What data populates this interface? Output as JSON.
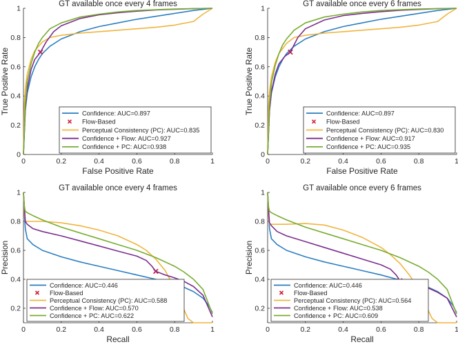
{
  "colors": {
    "confidence": "#2a7ec1",
    "flow": "#d21f3c",
    "pc": "#f0b43c",
    "conf_flow": "#7b2d8e",
    "conf_pc": "#77ac30",
    "axis": "#262626",
    "grid_text": "#262626"
  },
  "chart_data": [
    {
      "type": "line",
      "title": "GT available once every 4 frames",
      "xlabel": "False Positive Rate",
      "ylabel": "True Positive Rate",
      "xlim": [
        0,
        1
      ],
      "ylim": [
        0,
        1
      ],
      "xticks": [
        "0",
        "0.2",
        "0.4",
        "0.6",
        "0.8",
        "1"
      ],
      "yticks": [
        "0",
        "0.2",
        "0.4",
        "0.6",
        "0.8",
        "1"
      ],
      "legend_position": "bottom-right",
      "series": [
        {
          "name": "Confidence: AUC=0.897",
          "color_key": "confidence",
          "x": [
            0,
            0.01,
            0.02,
            0.04,
            0.06,
            0.08,
            0.1,
            0.14,
            0.2,
            0.3,
            0.4,
            0.5,
            0.6,
            0.7,
            0.8,
            0.9,
            1.0
          ],
          "y": [
            0,
            0.3,
            0.42,
            0.53,
            0.6,
            0.65,
            0.69,
            0.74,
            0.79,
            0.84,
            0.875,
            0.9,
            0.925,
            0.945,
            0.965,
            0.985,
            1.0
          ]
        },
        {
          "name": "Flow-Based",
          "color_key": "flow",
          "marker": "x",
          "x": [
            0.09
          ],
          "y": [
            0.7
          ]
        },
        {
          "name": "Perceptual Consistency (PC): AUC=0.835",
          "color_key": "pc",
          "x": [
            0,
            0.005,
            0.01,
            0.02,
            0.04,
            0.06,
            0.1,
            0.14,
            0.2,
            0.3,
            0.4,
            0.5,
            0.6,
            0.7,
            0.8,
            0.9,
            0.95,
            1.0
          ],
          "y": [
            0,
            0.35,
            0.45,
            0.55,
            0.65,
            0.71,
            0.77,
            0.8,
            0.815,
            0.83,
            0.84,
            0.85,
            0.86,
            0.87,
            0.885,
            0.91,
            0.96,
            1.0
          ]
        },
        {
          "name": "Confidence + Flow: AUC=0.927",
          "color_key": "conf_flow",
          "x": [
            0,
            0.01,
            0.02,
            0.04,
            0.06,
            0.09,
            0.12,
            0.16,
            0.2,
            0.3,
            0.4,
            0.5,
            0.6,
            0.7,
            0.8,
            0.9,
            1.0
          ],
          "y": [
            0,
            0.32,
            0.45,
            0.58,
            0.65,
            0.7,
            0.77,
            0.84,
            0.88,
            0.93,
            0.955,
            0.97,
            0.98,
            0.988,
            0.993,
            0.997,
            1.0
          ]
        },
        {
          "name": "Confidence + PC: AUC=0.938",
          "color_key": "conf_pc",
          "x": [
            0,
            0.01,
            0.02,
            0.04,
            0.06,
            0.08,
            0.1,
            0.14,
            0.2,
            0.3,
            0.4,
            0.5,
            0.6,
            0.7,
            0.8,
            0.9,
            1.0
          ],
          "y": [
            0,
            0.35,
            0.5,
            0.62,
            0.7,
            0.76,
            0.8,
            0.86,
            0.9,
            0.94,
            0.96,
            0.975,
            0.985,
            0.99,
            0.995,
            0.998,
            1.0
          ]
        }
      ]
    },
    {
      "type": "line",
      "title": "GT available once every 6 frames",
      "xlabel": "False Positive Rate",
      "ylabel": "True Positive Rate",
      "xlim": [
        0,
        1
      ],
      "ylim": [
        0,
        1
      ],
      "xticks": [
        "0",
        "0.2",
        "0.4",
        "0.6",
        "0.8",
        "1"
      ],
      "yticks": [
        "0",
        "0.2",
        "0.4",
        "0.6",
        "0.8",
        "1"
      ],
      "legend_position": "bottom-right",
      "series": [
        {
          "name": "Confidence: AUC=0.897",
          "color_key": "confidence",
          "x": [
            0,
            0.01,
            0.02,
            0.04,
            0.06,
            0.08,
            0.1,
            0.14,
            0.2,
            0.3,
            0.4,
            0.5,
            0.6,
            0.7,
            0.8,
            0.9,
            1.0
          ],
          "y": [
            0,
            0.3,
            0.42,
            0.53,
            0.6,
            0.65,
            0.69,
            0.74,
            0.79,
            0.84,
            0.875,
            0.9,
            0.925,
            0.945,
            0.965,
            0.985,
            1.0
          ]
        },
        {
          "name": "Flow-Based",
          "color_key": "flow",
          "marker": "x",
          "x": [
            0.12
          ],
          "y": [
            0.7
          ]
        },
        {
          "name": "Perceptual Consistency (PC): AUC=0.830",
          "color_key": "pc",
          "x": [
            0,
            0.005,
            0.01,
            0.02,
            0.04,
            0.06,
            0.1,
            0.14,
            0.2,
            0.3,
            0.4,
            0.5,
            0.6,
            0.7,
            0.8,
            0.9,
            0.95,
            1.0
          ],
          "y": [
            0,
            0.33,
            0.43,
            0.53,
            0.63,
            0.69,
            0.76,
            0.8,
            0.815,
            0.83,
            0.84,
            0.85,
            0.86,
            0.87,
            0.885,
            0.91,
            0.96,
            1.0
          ]
        },
        {
          "name": "Confidence + Flow: AUC=0.917",
          "color_key": "conf_flow",
          "x": [
            0,
            0.01,
            0.02,
            0.04,
            0.06,
            0.09,
            0.12,
            0.16,
            0.2,
            0.3,
            0.4,
            0.5,
            0.6,
            0.7,
            0.8,
            0.9,
            1.0
          ],
          "y": [
            0,
            0.3,
            0.43,
            0.55,
            0.62,
            0.67,
            0.7,
            0.8,
            0.86,
            0.92,
            0.95,
            0.965,
            0.977,
            0.986,
            0.992,
            0.997,
            1.0
          ]
        },
        {
          "name": "Confidence + PC: AUC=0.935",
          "color_key": "conf_pc",
          "x": [
            0,
            0.01,
            0.02,
            0.04,
            0.06,
            0.08,
            0.1,
            0.14,
            0.2,
            0.3,
            0.4,
            0.5,
            0.6,
            0.7,
            0.8,
            0.9,
            1.0
          ],
          "y": [
            0,
            0.34,
            0.49,
            0.61,
            0.69,
            0.75,
            0.79,
            0.85,
            0.9,
            0.94,
            0.96,
            0.975,
            0.985,
            0.99,
            0.995,
            0.998,
            1.0
          ]
        }
      ]
    },
    {
      "type": "line",
      "title": "GT available once every 4 frames",
      "xlabel": "Recall",
      "ylabel": "Precision",
      "xlim": [
        0,
        1
      ],
      "ylim": [
        0.1,
        1
      ],
      "xticks": [
        "0",
        "0.2",
        "0.4",
        "0.6",
        "0.8",
        "1"
      ],
      "yticks": [
        "0.2",
        "0.4",
        "0.6",
        "0.8",
        "1"
      ],
      "legend_position": "bottom-left",
      "series": [
        {
          "name": "Confidence: AUC=0.446",
          "color_key": "confidence",
          "x": [
            0,
            0.005,
            0.01,
            0.02,
            0.05,
            0.1,
            0.2,
            0.3,
            0.4,
            0.5,
            0.6,
            0.7,
            0.8,
            0.85,
            0.9,
            0.95,
            0.98,
            1.0
          ],
          "y": [
            1.0,
            0.85,
            0.75,
            0.68,
            0.64,
            0.6,
            0.555,
            0.52,
            0.49,
            0.46,
            0.43,
            0.4,
            0.365,
            0.345,
            0.315,
            0.27,
            0.22,
            0.17
          ]
        },
        {
          "name": "Flow-Based",
          "color_key": "flow",
          "marker": "x",
          "x": [
            0.7
          ],
          "y": [
            0.455
          ]
        },
        {
          "name": "Perceptual Consistency (PC): AUC=0.588",
          "color_key": "pc",
          "x": [
            0,
            0.005,
            0.01,
            0.05,
            0.1,
            0.2,
            0.3,
            0.4,
            0.5,
            0.6,
            0.65,
            0.7,
            0.75,
            0.8,
            0.83,
            0.87,
            0.9,
            0.97,
            1.0
          ],
          "y": [
            1.0,
            0.85,
            0.8,
            0.8,
            0.8,
            0.79,
            0.77,
            0.74,
            0.7,
            0.64,
            0.6,
            0.54,
            0.46,
            0.34,
            0.25,
            0.13,
            0.1,
            0.1,
            0.1
          ]
        },
        {
          "name": "Confidence + Flow: AUC=0.570",
          "color_key": "conf_flow",
          "x": [
            0,
            0.005,
            0.01,
            0.02,
            0.05,
            0.1,
            0.2,
            0.3,
            0.4,
            0.5,
            0.6,
            0.65,
            0.68,
            0.7,
            0.75,
            0.8,
            0.85,
            0.9,
            0.95,
            1.0
          ],
          "y": [
            1.0,
            0.9,
            0.8,
            0.78,
            0.75,
            0.73,
            0.7,
            0.665,
            0.63,
            0.595,
            0.56,
            0.53,
            0.49,
            0.455,
            0.43,
            0.41,
            0.385,
            0.35,
            0.29,
            0.14
          ]
        },
        {
          "name": "Confidence + PC: AUC=0.622",
          "color_key": "conf_pc",
          "x": [
            0,
            0.005,
            0.01,
            0.02,
            0.05,
            0.1,
            0.2,
            0.3,
            0.4,
            0.5,
            0.6,
            0.7,
            0.8,
            0.85,
            0.9,
            0.95,
            1.0
          ],
          "y": [
            1.0,
            0.9,
            0.87,
            0.86,
            0.84,
            0.81,
            0.76,
            0.72,
            0.68,
            0.64,
            0.6,
            0.55,
            0.49,
            0.45,
            0.4,
            0.33,
            0.16
          ]
        }
      ]
    },
    {
      "type": "line",
      "title": "GT available once every 6 frames",
      "xlabel": "Recall",
      "ylabel": "Precision",
      "xlim": [
        0,
        1
      ],
      "ylim": [
        0.1,
        1
      ],
      "xticks": [
        "0",
        "0.2",
        "0.4",
        "0.6",
        "0.8",
        "1"
      ],
      "yticks": [
        "0.2",
        "0.4",
        "0.6",
        "0.8",
        "1"
      ],
      "legend_position": "bottom-left",
      "series": [
        {
          "name": "Confidence: AUC=0.446",
          "color_key": "confidence",
          "x": [
            0,
            0.005,
            0.01,
            0.02,
            0.05,
            0.1,
            0.2,
            0.3,
            0.4,
            0.5,
            0.6,
            0.7,
            0.8,
            0.85,
            0.9,
            0.95,
            0.98,
            1.0
          ],
          "y": [
            1.0,
            0.85,
            0.75,
            0.68,
            0.64,
            0.6,
            0.555,
            0.52,
            0.49,
            0.46,
            0.43,
            0.395,
            0.365,
            0.345,
            0.315,
            0.27,
            0.22,
            0.17
          ]
        },
        {
          "name": "Flow-Based",
          "color_key": "flow",
          "marker": "x",
          "x": [
            0.7
          ],
          "y": [
            0.39
          ]
        },
        {
          "name": "Perceptual Consistency (PC): AUC=0.564",
          "color_key": "pc",
          "x": [
            0,
            0.005,
            0.01,
            0.05,
            0.1,
            0.2,
            0.3,
            0.4,
            0.5,
            0.6,
            0.65,
            0.7,
            0.75,
            0.8,
            0.83,
            0.87,
            0.9,
            0.97,
            1.0
          ],
          "y": [
            1.0,
            0.84,
            0.78,
            0.78,
            0.78,
            0.785,
            0.775,
            0.74,
            0.69,
            0.62,
            0.57,
            0.51,
            0.43,
            0.33,
            0.24,
            0.13,
            0.1,
            0.1,
            0.1
          ]
        },
        {
          "name": "Confidence + Flow: AUC=0.538",
          "color_key": "conf_flow",
          "x": [
            0,
            0.005,
            0.01,
            0.02,
            0.05,
            0.1,
            0.2,
            0.3,
            0.4,
            0.5,
            0.6,
            0.65,
            0.68,
            0.7,
            0.75,
            0.8,
            0.85,
            0.9,
            0.95,
            1.0
          ],
          "y": [
            1.0,
            0.88,
            0.79,
            0.77,
            0.73,
            0.7,
            0.66,
            0.62,
            0.58,
            0.54,
            0.5,
            0.47,
            0.43,
            0.39,
            0.375,
            0.36,
            0.34,
            0.31,
            0.27,
            0.14
          ]
        },
        {
          "name": "Confidence + PC: AUC=0.609",
          "color_key": "conf_pc",
          "x": [
            0,
            0.005,
            0.01,
            0.02,
            0.05,
            0.1,
            0.2,
            0.3,
            0.4,
            0.5,
            0.6,
            0.7,
            0.8,
            0.85,
            0.9,
            0.95,
            1.0
          ],
          "y": [
            1.0,
            0.9,
            0.87,
            0.86,
            0.84,
            0.81,
            0.76,
            0.72,
            0.68,
            0.64,
            0.6,
            0.55,
            0.49,
            0.45,
            0.4,
            0.33,
            0.16
          ]
        }
      ]
    }
  ]
}
